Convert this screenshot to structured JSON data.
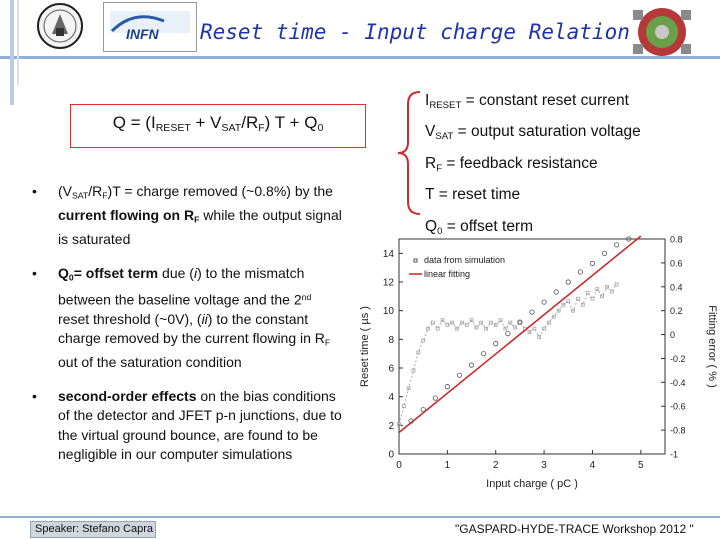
{
  "title": "Reset time - Input charge Relation",
  "logos": {
    "institute": "INFN"
  },
  "formula": {
    "prefix": "Q = (I",
    "s1": "RESET",
    "m1": " + V",
    "s2": "SAT",
    "m2": "/R",
    "s3": "F",
    "m3": ") T + Q",
    "s4": "0"
  },
  "bullet1": {
    "b": "•",
    "t1": "(V",
    "s1": "SAT",
    "t2": "/R",
    "s2": "F",
    "t3": ")T = charge removed (~0.8%) by the ",
    "bold1": "current flowing on R",
    "bold1sub": "F",
    "t4": " while the output signal is saturated"
  },
  "bullet2": {
    "b": "•",
    "bold1": "Q",
    "bold1sub": "0",
    "bold2": "= offset term",
    "t1": " due (",
    "i1": "i",
    "t2": ") to the mismatch between the baseline voltage and the 2",
    "sup1": "nd",
    "t3": " reset threshold (~0V), (",
    "i2": "ii",
    "t4": ") to the constant charge removed by the current flowing in R",
    "s1": "F",
    "t5": " out of the saturation condition"
  },
  "bullet3": {
    "b": "•",
    "bold1": "second-order effects",
    "t1": " on the bias conditions of the detector and JFET   p-n junctions, due to the virtual ground bounce, are found to be negligible in our computer simulations"
  },
  "definitions": [
    {
      "sym": "I",
      "sub": "RESET",
      "desc": " = constant reset current"
    },
    {
      "sym": "V",
      "sub": "SAT",
      "desc": " = output saturation voltage"
    },
    {
      "sym": "R",
      "sub": "F",
      "desc": " = feedback resistance"
    },
    {
      "sym": "T",
      "sub": "",
      "desc": " = reset time"
    },
    {
      "sym": "Q",
      "sub": "0",
      "desc": " = offset term"
    }
  ],
  "chart_data": {
    "type": "scatter",
    "xlabel": "Input charge ( pC )",
    "ylabel": "Reset time ( µs )",
    "y2label": "Fitting error ( % )",
    "xlim": [
      0,
      5.5
    ],
    "ylim": [
      0,
      15
    ],
    "y2lim": [
      -1.0,
      0.8
    ],
    "xticks": [
      "0",
      "1",
      "2",
      "3",
      "4",
      "5"
    ],
    "yticks": [
      "0",
      "2",
      "4",
      "6",
      "8",
      "10",
      "12",
      "14"
    ],
    "y2ticks": [
      "-1",
      "-0.8",
      "-0.6",
      "-0.4",
      "-0.2",
      "0",
      "0.2",
      "0.4",
      "0.6",
      "0.8"
    ],
    "legend": [
      "data from simulation",
      "linear fitting"
    ],
    "legend_position": "top-left",
    "colors": {
      "data": "#555555",
      "fit": "#cc2222",
      "error": "#999999"
    },
    "simulation": [
      [
        0.25,
        2.3
      ],
      [
        0.5,
        3.1
      ],
      [
        0.75,
        3.9
      ],
      [
        1.0,
        4.7
      ],
      [
        1.25,
        5.5
      ],
      [
        1.5,
        6.2
      ],
      [
        1.75,
        7.0
      ],
      [
        2.0,
        7.7
      ],
      [
        2.25,
        8.4
      ],
      [
        2.5,
        9.2
      ],
      [
        2.75,
        9.9
      ],
      [
        3.0,
        10.6
      ],
      [
        3.25,
        11.3
      ],
      [
        3.5,
        12.0
      ],
      [
        3.75,
        12.7
      ],
      [
        4.0,
        13.3
      ],
      [
        4.25,
        14.0
      ],
      [
        4.5,
        14.6
      ],
      [
        4.75,
        15.0
      ]
    ],
    "fit": {
      "x": [
        0,
        5.0
      ],
      "y": [
        1.5,
        15.2
      ]
    },
    "fitting_error": [
      [
        0.0,
        -0.75
      ],
      [
        0.1,
        -0.6
      ],
      [
        0.2,
        -0.45
      ],
      [
        0.3,
        -0.3
      ],
      [
        0.4,
        -0.15
      ],
      [
        0.5,
        -0.05
      ],
      [
        0.6,
        0.05
      ],
      [
        0.7,
        0.1
      ],
      [
        0.8,
        0.05
      ],
      [
        0.9,
        0.12
      ],
      [
        1.0,
        0.08
      ],
      [
        1.1,
        0.1
      ],
      [
        1.2,
        0.05
      ],
      [
        1.3,
        0.1
      ],
      [
        1.4,
        0.08
      ],
      [
        1.5,
        0.12
      ],
      [
        1.6,
        0.06
      ],
      [
        1.7,
        0.1
      ],
      [
        1.8,
        0.05
      ],
      [
        1.9,
        0.1
      ],
      [
        2.0,
        0.08
      ],
      [
        2.1,
        0.12
      ],
      [
        2.2,
        0.05
      ],
      [
        2.3,
        0.1
      ],
      [
        2.4,
        0.06
      ],
      [
        2.5,
        0.1
      ],
      [
        2.6,
        0.05
      ],
      [
        2.7,
        0.02
      ],
      [
        2.8,
        0.05
      ],
      [
        2.9,
        -0.02
      ],
      [
        3.0,
        0.05
      ],
      [
        3.1,
        0.1
      ],
      [
        3.2,
        0.15
      ],
      [
        3.3,
        0.2
      ],
      [
        3.4,
        0.25
      ],
      [
        3.5,
        0.28
      ],
      [
        3.6,
        0.2
      ],
      [
        3.7,
        0.3
      ],
      [
        3.8,
        0.25
      ],
      [
        3.9,
        0.35
      ],
      [
        4.0,
        0.3
      ],
      [
        4.1,
        0.38
      ],
      [
        4.2,
        0.32
      ],
      [
        4.3,
        0.4
      ],
      [
        4.4,
        0.36
      ],
      [
        4.5,
        0.42
      ]
    ]
  },
  "footer": {
    "speaker": "Speaker: Stefano Capra",
    "workshop": "\"GASPARD-HYDE-TRACE Workshop 2012 \""
  }
}
